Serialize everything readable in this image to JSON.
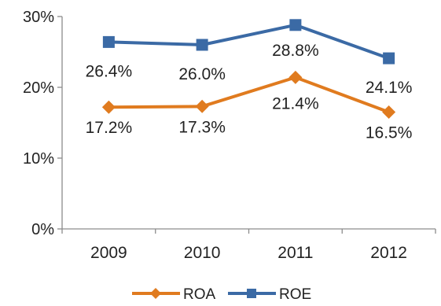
{
  "chart_data": {
    "type": "line",
    "categories": [
      "2009",
      "2010",
      "2011",
      "2012"
    ],
    "ylim": [
      0,
      30
    ],
    "yticks": [
      {
        "value": 0,
        "label": "0%"
      },
      {
        "value": 10,
        "label": "10%"
      },
      {
        "value": 20,
        "label": "20%"
      },
      {
        "value": 30,
        "label": "30%"
      }
    ],
    "grid": false,
    "legend_position": "bottom",
    "series": [
      {
        "name": "ROA",
        "values": [
          17.2,
          17.3,
          21.4,
          16.5
        ],
        "labels": [
          "17.2%",
          "17.3%",
          "21.4%",
          "16.5%"
        ],
        "color": "#e07b1f",
        "marker": "diamond"
      },
      {
        "name": "ROE",
        "values": [
          26.4,
          26.0,
          28.8,
          24.1
        ],
        "labels": [
          "26.4%",
          "26.0%",
          "28.8%",
          "24.1%"
        ],
        "color": "#3b6aa5",
        "marker": "square"
      }
    ]
  }
}
